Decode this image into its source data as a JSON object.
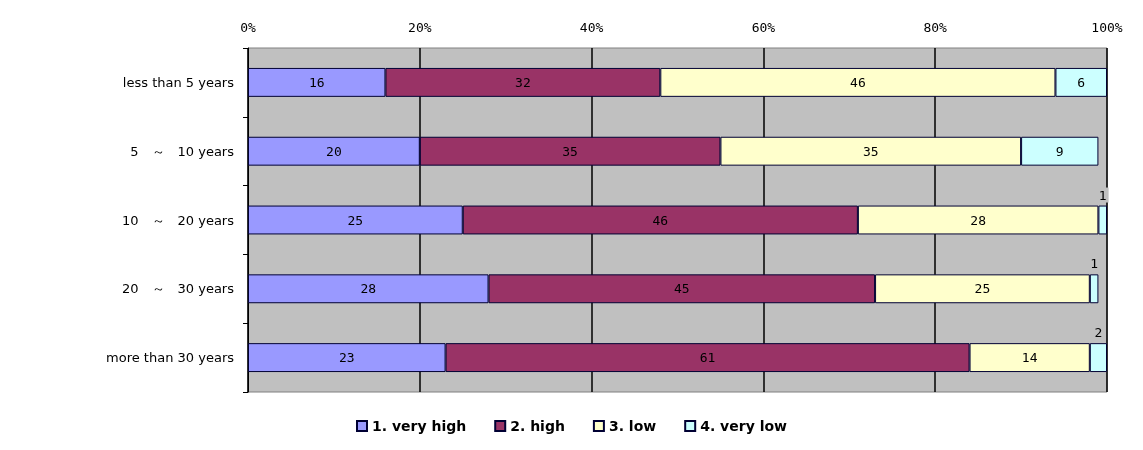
{
  "chart_data": {
    "type": "bar",
    "orientation": "horizontal",
    "stacked": true,
    "categories": [
      "less than 5 years",
      "5　～　10 years",
      "10　～　20 years",
      "20　～　30 years",
      "more than 30 years"
    ],
    "series": [
      {
        "name": "1. very high",
        "color": "#9999ff",
        "values": [
          16,
          20,
          25,
          28,
          23
        ]
      },
      {
        "name": "2. high",
        "color": "#993366",
        "values": [
          32,
          35,
          46,
          45,
          61
        ]
      },
      {
        "name": "3. low",
        "color": "#ffffcc",
        "values": [
          46,
          35,
          28,
          25,
          14
        ]
      },
      {
        "name": "4. very low",
        "color": "#ccffff",
        "values": [
          6,
          9,
          1,
          1,
          2
        ]
      }
    ],
    "xlim": [
      0,
      100
    ],
    "xticks": [
      {
        "value": 0,
        "label": "0%"
      },
      {
        "value": 20,
        "label": "20%"
      },
      {
        "value": 40,
        "label": "40%"
      },
      {
        "value": 60,
        "label": "60%"
      },
      {
        "value": 80,
        "label": "80%"
      },
      {
        "value": 100,
        "label": "100%"
      }
    ],
    "data_labels": true,
    "grid": "x",
    "legend": "bottom"
  }
}
